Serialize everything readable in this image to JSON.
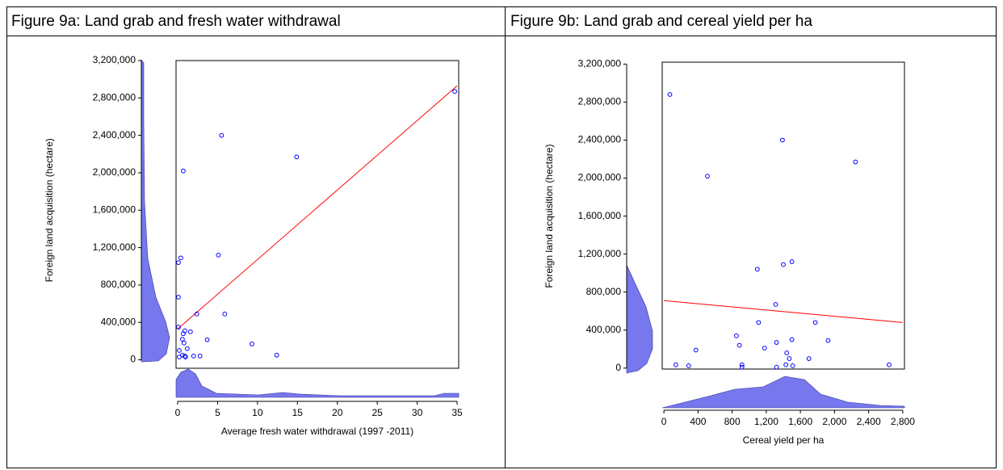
{
  "chart_data": [
    {
      "type": "scatter",
      "title": "Figure 9a: Land grab and fresh water withdrawal",
      "x_label": "Average fresh water withdrawal (1997 -2011)",
      "y_label": "Foreign land acquisition (hectare)",
      "color": "#0000ff",
      "x": [
        34.7,
        5.5,
        14.9,
        0.7,
        0.4,
        0.1,
        5.1,
        0.1,
        5.9,
        2.4,
        0.1,
        0.9,
        0.7,
        0.6,
        0.8,
        1.6,
        3.7,
        9.3,
        1.2,
        0.2,
        0.6,
        0.9,
        1.0,
        2.0,
        2.8,
        12.4,
        0.2
      ],
      "values": [
        2870000,
        2400000,
        2170000,
        2020000,
        1090000,
        1040000,
        1120000,
        670000,
        490000,
        490000,
        350000,
        310000,
        280000,
        220000,
        180000,
        300000,
        215000,
        170000,
        120000,
        100000,
        50000,
        40000,
        30000,
        40000,
        40000,
        50000,
        30000
      ],
      "trend_line": {
        "x": [
          0,
          35
        ],
        "values": [
          330000,
          2930000
        ],
        "color": "#ff0000"
      },
      "xlim": [
        -0.2,
        35.2
      ],
      "ylim": [
        -90000,
        3200000
      ],
      "xticks": [
        0,
        5,
        10,
        15,
        20,
        25,
        30,
        35
      ],
      "yticks": [
        0,
        {
          "value": 400000,
          "label": "400,000"
        },
        {
          "value": 800000,
          "label": "800,000"
        },
        {
          "value": 1200000,
          "label": "1,200,000"
        },
        {
          "value": 1600000,
          "label": "1,600,000"
        },
        {
          "value": 2000000,
          "label": "2,000,000"
        },
        {
          "value": 2400000,
          "label": "2,400,000"
        },
        {
          "value": 2800000,
          "label": "2,800,000"
        },
        {
          "value": 3200000,
          "label": "3,200,000"
        }
      ]
    },
    {
      "type": "scatter",
      "title": "Figure 9b: Land grab and cereal yield per ha",
      "x_label": "Cereal yield per ha",
      "y_label": "Foreign land acquisition (hectare)",
      "color": "#0000ff",
      "x": [
        70,
        1390,
        510,
        2245,
        1095,
        1400,
        1500,
        1310,
        1110,
        1775,
        850,
        885,
        1320,
        1500,
        1925,
        1180,
        375,
        1440,
        1470,
        1700,
        140,
        290,
        915,
        915,
        1320,
        1430,
        1510,
        2640
      ],
      "values": [
        2880000,
        2400000,
        2020000,
        2170000,
        1040000,
        1090000,
        1120000,
        670000,
        480000,
        480000,
        340000,
        240000,
        270000,
        300000,
        290000,
        210000,
        190000,
        160000,
        100000,
        100000,
        35000,
        25000,
        35000,
        10000,
        10000,
        35000,
        25000,
        35000
      ],
      "trend_line": {
        "x": [
          0,
          2800
        ],
        "values": [
          710000,
          480000
        ],
        "color": "#ff0000"
      },
      "xlim": [
        -20,
        2820
      ],
      "ylim": [
        -10000,
        3220000
      ],
      "xticks": [
        0,
        400,
        800,
        {
          "value": 1200,
          "label": "1,200"
        },
        {
          "value": 1600,
          "label": "1,600"
        },
        {
          "value": 2000,
          "label": "2,000"
        },
        {
          "value": 2400,
          "label": "2,400"
        },
        {
          "value": 2800,
          "label": "2,800"
        }
      ],
      "yticks": [
        0,
        {
          "value": 400000,
          "label": "400,000"
        },
        {
          "value": 800000,
          "label": "800,000"
        },
        {
          "value": 1200000,
          "label": "1,200,000"
        },
        {
          "value": 1600000,
          "label": "1,600,000"
        },
        {
          "value": 2000000,
          "label": "2,000,000"
        },
        {
          "value": 2400000,
          "label": "2,400,000"
        },
        {
          "value": 2800000,
          "label": "2,800,000"
        },
        {
          "value": 3200000,
          "label": "3,200,000"
        }
      ]
    }
  ]
}
